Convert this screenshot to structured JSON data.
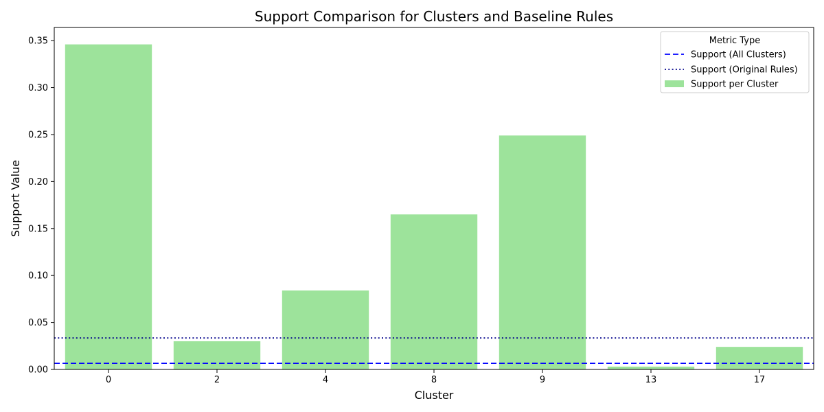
{
  "chart_data": {
    "type": "bar",
    "title": "Support Comparison for Clusters and Baseline Rules",
    "xlabel": "Cluster",
    "ylabel": "Support Value",
    "categories": [
      "0",
      "2",
      "4",
      "8",
      "9",
      "13",
      "17"
    ],
    "values": [
      0.346,
      0.03,
      0.084,
      0.165,
      0.249,
      0.003,
      0.024
    ],
    "ylim": [
      0,
      0.364
    ],
    "yticks": [
      0.0,
      0.05,
      0.1,
      0.15,
      0.2,
      0.25,
      0.3,
      0.35
    ],
    "ytick_labels": [
      "0.00",
      "0.05",
      "0.10",
      "0.15",
      "0.20",
      "0.25",
      "0.30",
      "0.35"
    ],
    "bar_series_name": "Support per Cluster",
    "bar_color": "#9de39b",
    "reference_lines": [
      {
        "name": "Support (All Clusters)",
        "value": 0.0065,
        "style": "dashed",
        "color": "#0000ff"
      },
      {
        "name": "Support (Original Rules)",
        "value": 0.0335,
        "style": "dotted",
        "color": "#00008b"
      }
    ],
    "legend": {
      "title": "Metric Type",
      "placement": "top-right",
      "entries": [
        "Support (All Clusters)",
        "Support (Original Rules)",
        "Support per Cluster"
      ]
    },
    "grid": false
  }
}
